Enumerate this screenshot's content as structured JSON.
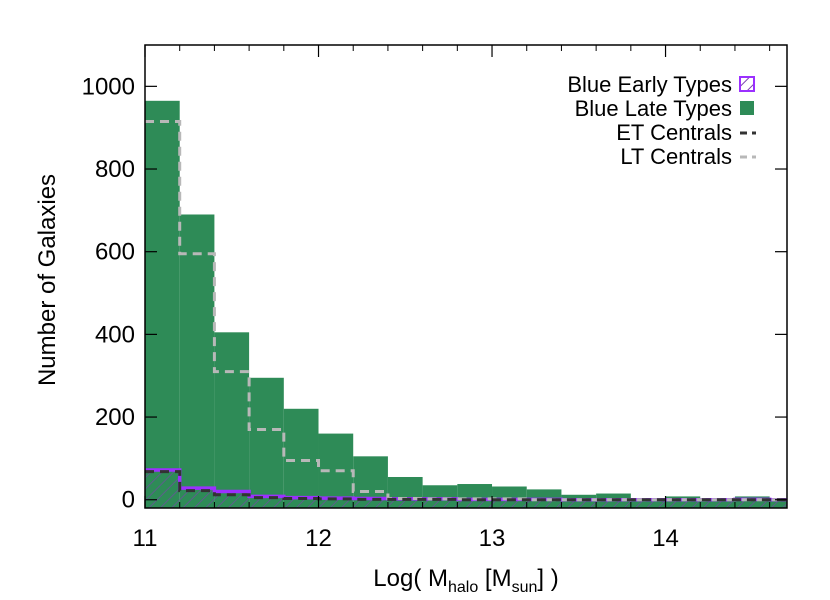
{
  "chart_data": {
    "type": "bar",
    "xlabel": {
      "prefix": "Log( M",
      "sub1": "halo",
      "mid": " [M",
      "sub2": "sun",
      "suffix": "] )"
    },
    "ylabel": "Number of Galaxies",
    "xlim": [
      11.0,
      14.7
    ],
    "ylim": [
      -20,
      1100
    ],
    "xticks": [
      11,
      12,
      13,
      14
    ],
    "yticks": [
      0,
      200,
      400,
      600,
      800,
      1000
    ],
    "bin_edges": [
      11.0,
      11.2,
      11.4,
      11.6,
      11.8,
      12.0,
      12.2,
      12.4,
      12.6,
      12.8,
      13.0,
      13.2,
      13.4,
      13.6,
      13.8,
      14.0,
      14.2,
      14.4,
      14.6,
      14.7
    ],
    "series": [
      {
        "name": "Blue Late Types",
        "style": "filled",
        "color": "#2e8b57",
        "values": [
          965,
          690,
          405,
          295,
          220,
          160,
          105,
          55,
          35,
          38,
          32,
          25,
          12,
          15,
          3,
          8,
          2,
          8,
          2
        ]
      },
      {
        "name": "Blue Early Types",
        "style": "hatched",
        "color": "#9b30ff",
        "values": [
          72,
          28,
          20,
          8,
          5,
          4,
          3,
          2,
          2,
          1,
          1,
          1,
          0,
          0,
          0,
          0,
          0,
          1,
          0
        ]
      },
      {
        "name": "ET Centrals",
        "style": "dashed",
        "color": "#333333",
        "values": [
          68,
          22,
          12,
          5,
          3,
          2,
          1,
          1,
          1,
          0,
          0,
          0,
          0,
          0,
          0,
          0,
          0,
          0,
          0
        ]
      },
      {
        "name": "LT Centrals",
        "style": "dashed",
        "color": "#b8b8b8",
        "values": [
          915,
          595,
          310,
          170,
          95,
          70,
          20,
          3,
          2,
          2,
          2,
          0,
          0,
          0,
          0,
          0,
          0,
          0,
          0
        ]
      }
    ],
    "legend_position": "top-right"
  }
}
